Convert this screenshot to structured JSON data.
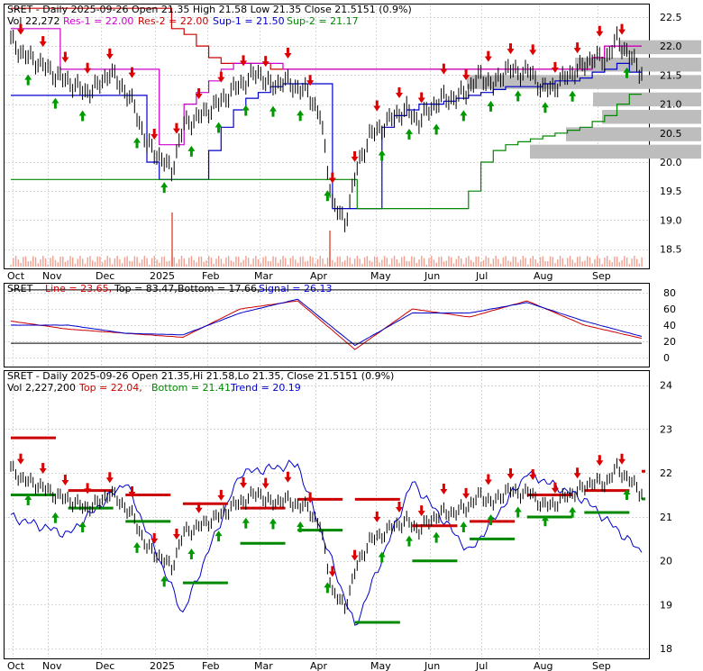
{
  "colors": {
    "res1": "#cc00cc",
    "res2": "#cc0000",
    "sup1": "#0000cc",
    "sup2": "#008800",
    "down_arrow": "#dd0000",
    "up_arrow": "#009900",
    "volume_profile": "#bdbdbd",
    "candle": "#000000",
    "stoch_line": "#cc0000",
    "stoch_signal": "#0000cc"
  },
  "months": [
    "Oct",
    "Nov",
    "Dec",
    "2025",
    "Feb",
    "Mar",
    "Apr",
    "May",
    "Jun",
    "Jul",
    "Aug",
    "Sep"
  ],
  "panel1": {
    "title": "SRET - Daily 2025-09-26 Open 21.35  High 21.58  Low 21.35  Close 21.5151 (0.9%)",
    "legend_vol": "Vol 22,272",
    "legend_res1": "Res-1 = 22.00",
    "legend_res2": "Res-2 = 22.00",
    "legend_sup1": "Sup-1 = 21.50",
    "legend_sup2": "Sup-2 = 21.17",
    "y_ticks": [
      "22.5",
      "22.0",
      "21.5",
      "21.0",
      "20.5",
      "20.0",
      "19.5",
      "19.0",
      "18.5"
    ]
  },
  "panel2": {
    "legend_name": "SRET",
    "legend_line": "Line = 23.65,",
    "legend_top": "Top = 83.47,",
    "legend_bottom": "Bottom = 17.66,",
    "legend_signal": "Signal = 26.13",
    "y_ticks": [
      "80",
      "60",
      "40",
      "20",
      "0"
    ]
  },
  "panel3": {
    "title": "SRET - Daily 2025-09-26 Open 21.35,Hi 21.58,Lo 21.35, Close 21.5151 (0.9%)",
    "legend_vol": "Vol 2,227,200",
    "legend_top": "Top = 22.04,",
    "legend_bottom": "Bottom = 21.41,",
    "legend_trend": "Trend = 20.19",
    "y_ticks": [
      "24",
      "23",
      "22",
      "21",
      "20",
      "19",
      "18"
    ]
  },
  "chart_data": [
    {
      "type": "line",
      "title": "SRET - Daily 2025-09-26 Open 21.35  High 21.58  Low 21.35  Close 21.5151 (0.9%)",
      "x": [
        "2024-10-01",
        "2024-10-08",
        "2024-10-15",
        "2024-10-22",
        "2024-10-29",
        "2024-11-05",
        "2024-11-12",
        "2024-11-19",
        "2024-11-26",
        "2024-12-03",
        "2024-12-10",
        "2024-12-17",
        "2024-12-24",
        "2024-12-31",
        "2025-01-07",
        "2025-01-14",
        "2025-01-21",
        "2025-01-28",
        "2025-02-04",
        "2025-02-11",
        "2025-02-18",
        "2025-02-25",
        "2025-03-04",
        "2025-03-11",
        "2025-03-18",
        "2025-03-25",
        "2025-04-01",
        "2025-04-08",
        "2025-04-15",
        "2025-04-22",
        "2025-04-29",
        "2025-05-06",
        "2025-05-13",
        "2025-05-20",
        "2025-05-27",
        "2025-06-03",
        "2025-06-10",
        "2025-06-17",
        "2025-06-24",
        "2025-07-01",
        "2025-07-08",
        "2025-07-15",
        "2025-07-22",
        "2025-07-29",
        "2025-08-05",
        "2025-08-12",
        "2025-08-19",
        "2025-08-26",
        "2025-09-02",
        "2025-09-09",
        "2025-09-16",
        "2025-09-26"
      ],
      "series": [
        {
          "name": "Close",
          "values": [
            22.1,
            21.85,
            21.75,
            21.6,
            21.45,
            21.35,
            21.2,
            21.3,
            21.55,
            21.3,
            20.95,
            20.3,
            20.1,
            19.85,
            20.65,
            20.75,
            20.9,
            21.05,
            21.25,
            21.4,
            21.55,
            21.3,
            21.4,
            21.3,
            21.2,
            20.8,
            19.3,
            18.95,
            19.9,
            20.45,
            20.6,
            20.8,
            20.9,
            20.7,
            20.95,
            21.1,
            21.1,
            21.25,
            21.5,
            21.3,
            21.6,
            21.55,
            21.55,
            21.25,
            21.3,
            21.5,
            21.6,
            21.8,
            21.75,
            22.1,
            21.85,
            21.52
          ]
        },
        {
          "name": "Res-1",
          "values": [
            22.3,
            22.3,
            22.3,
            22.3,
            21.6,
            21.6,
            21.6,
            21.6,
            21.6,
            21.6,
            21.6,
            21.6,
            20.3,
            20.3,
            21.0,
            21.2,
            21.4,
            21.6,
            21.7,
            21.7,
            21.7,
            21.7,
            21.6,
            21.6,
            21.6,
            21.6,
            21.6,
            21.6,
            21.6,
            21.6,
            21.6,
            21.6,
            21.6,
            21.6,
            21.6,
            21.6,
            21.6,
            21.6,
            21.6,
            21.6,
            21.6,
            21.6,
            21.6,
            21.6,
            21.6,
            21.6,
            21.6,
            21.8,
            22.0,
            22.0,
            22.0,
            22.0
          ]
        },
        {
          "name": "Res-2",
          "values": [
            22.65,
            22.65,
            22.65,
            22.65,
            22.65,
            22.65,
            22.65,
            22.65,
            22.65,
            22.65,
            22.65,
            22.65,
            22.65,
            22.3,
            22.2,
            22.0,
            21.8,
            21.7,
            21.7,
            21.7,
            21.7,
            21.6,
            21.6,
            21.6,
            21.6,
            21.6,
            21.6,
            21.6,
            21.6,
            21.6,
            21.6,
            21.6,
            21.6,
            21.6,
            21.6,
            21.6,
            21.6,
            21.6,
            21.6,
            21.6,
            21.6,
            21.6,
            21.6,
            21.6,
            21.6,
            21.6,
            21.6,
            21.8,
            22.0,
            22.0,
            22.0,
            22.0
          ]
        },
        {
          "name": "Sup-1",
          "values": [
            21.15,
            21.15,
            21.15,
            21.15,
            21.15,
            21.15,
            21.15,
            21.15,
            21.15,
            21.15,
            21.15,
            20.0,
            19.7,
            19.7,
            19.7,
            19.7,
            20.2,
            20.6,
            20.9,
            21.1,
            21.2,
            21.3,
            21.35,
            21.35,
            21.35,
            21.35,
            19.2,
            19.2,
            19.2,
            19.2,
            20.6,
            20.8,
            20.9,
            21.0,
            21.0,
            21.05,
            21.1,
            21.15,
            21.2,
            21.25,
            21.3,
            21.3,
            21.3,
            21.35,
            21.4,
            21.4,
            21.45,
            21.55,
            21.6,
            21.7,
            21.55,
            21.5
          ]
        },
        {
          "name": "Sup-2",
          "values": [
            19.7,
            19.7,
            19.7,
            19.7,
            19.7,
            19.7,
            19.7,
            19.7,
            19.7,
            19.7,
            19.7,
            19.7,
            19.7,
            19.7,
            19.7,
            19.7,
            19.7,
            19.7,
            19.7,
            19.7,
            19.7,
            19.7,
            19.7,
            19.7,
            19.7,
            19.7,
            19.7,
            19.7,
            19.2,
            19.2,
            19.2,
            19.2,
            19.2,
            19.2,
            19.2,
            19.2,
            19.2,
            19.5,
            20.0,
            20.2,
            20.3,
            20.35,
            20.4,
            20.45,
            20.5,
            20.55,
            20.6,
            20.7,
            20.8,
            21.0,
            21.17,
            21.17
          ]
        }
      ],
      "ylim": [
        18.2,
        22.7
      ],
      "y_ticks": [
        22.5,
        22.0,
        21.5,
        21.0,
        20.5,
        20.0,
        19.5,
        19.0,
        18.5
      ],
      "grid": true
    },
    {
      "type": "line",
      "title": "SRET",
      "x": [
        "2024-10",
        "2024-11",
        "2024-12",
        "2025-01",
        "2025-02",
        "2025-03",
        "2025-04",
        "2025-05",
        "2025-06",
        "2025-07",
        "2025-08",
        "2025-09"
      ],
      "series": [
        {
          "name": "Line",
          "values": [
            45,
            35,
            30,
            25,
            60,
            70,
            10,
            60,
            50,
            70,
            40,
            23.65
          ]
        },
        {
          "name": "Signal",
          "values": [
            40,
            40,
            30,
            28,
            55,
            72,
            15,
            55,
            55,
            68,
            45,
            26.13
          ]
        },
        {
          "name": "Top",
          "values": [
            83.47,
            83.47,
            83.47,
            83.47,
            83.47,
            83.47,
            83.47,
            83.47,
            83.47,
            83.47,
            83.47,
            83.47
          ]
        },
        {
          "name": "Bottom",
          "values": [
            17.66,
            17.66,
            17.66,
            17.66,
            17.66,
            17.66,
            17.66,
            17.66,
            17.66,
            17.66,
            17.66,
            17.66
          ]
        }
      ],
      "ylim": [
        -10,
        90
      ],
      "y_ticks": [
        80,
        60,
        40,
        20,
        0
      ],
      "grid": true
    },
    {
      "type": "line",
      "title": "SRET - Daily 2025-09-26 Open 21.35,Hi 21.58,Lo 21.35, Close 21.5151 (0.9%)",
      "x": [
        "2024-10",
        "2024-11",
        "2024-12",
        "2025-01",
        "2025-02",
        "2025-03",
        "2025-04",
        "2025-05",
        "2025-06",
        "2025-07",
        "2025-08",
        "2025-09"
      ],
      "series": [
        {
          "name": "Close",
          "values": [
            22.0,
            21.2,
            20.3,
            19.8,
            20.9,
            21.3,
            19.0,
            20.6,
            21.1,
            21.3,
            21.4,
            21.52
          ]
        },
        {
          "name": "Top",
          "values": [
            22.8,
            21.6,
            21.5,
            21.3,
            21.2,
            21.4,
            21.4,
            20.8,
            20.9,
            21.5,
            21.6,
            22.04
          ]
        },
        {
          "name": "Bottom",
          "values": [
            21.5,
            21.2,
            20.9,
            19.5,
            20.4,
            20.7,
            18.6,
            20.0,
            20.5,
            21.0,
            21.1,
            21.41
          ]
        },
        {
          "name": "Trend",
          "values": [
            21.0,
            20.6,
            21.8,
            18.8,
            22.0,
            22.2,
            18.5,
            21.8,
            20.2,
            22.0,
            21.4,
            20.19
          ]
        }
      ],
      "ylim": [
        17.8,
        24.3
      ],
      "y_ticks": [
        24,
        23,
        22,
        21,
        20,
        19,
        18
      ],
      "grid": true
    }
  ]
}
